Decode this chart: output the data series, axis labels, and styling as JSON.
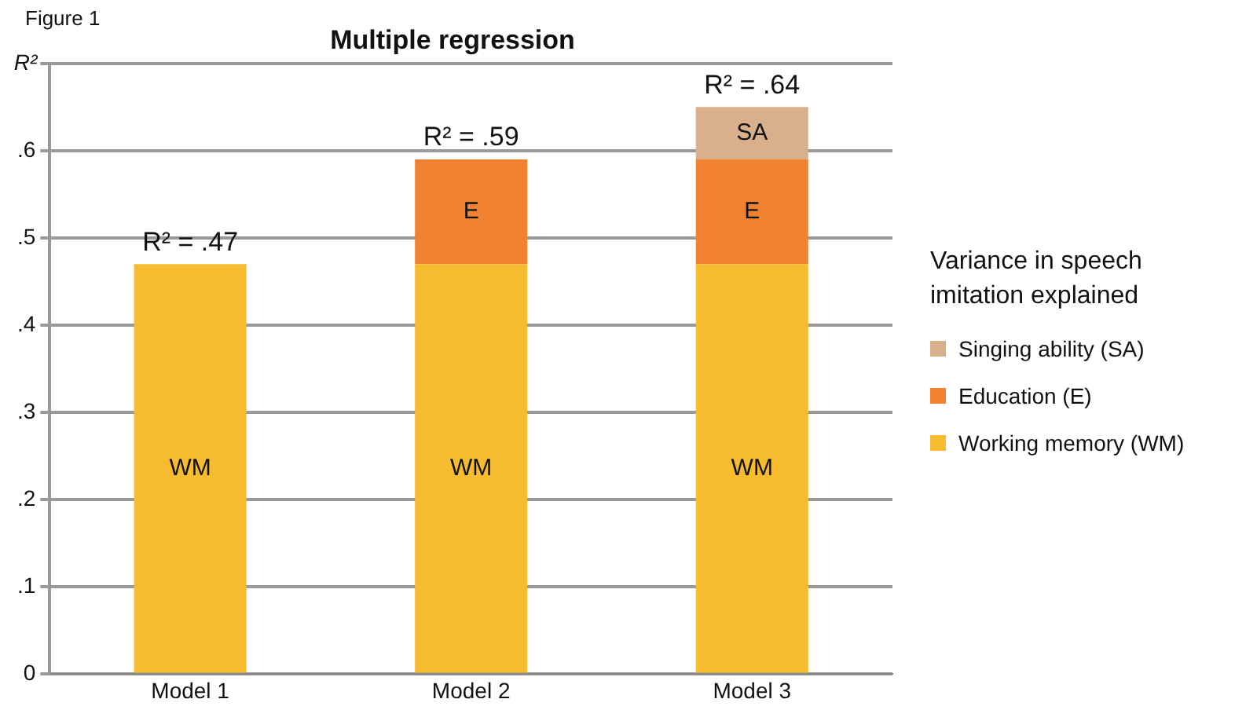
{
  "chart_data": {
    "type": "bar",
    "title": "Multiple regression",
    "ylabel": "R²",
    "annotations": [
      "Figure 1"
    ],
    "categories": [
      "Model 1",
      "Model 2",
      "Model 3"
    ],
    "stacked": true,
    "series": [
      {
        "name": "Working memory (WM)",
        "color": "#f6bb2e",
        "values": [
          0.47,
          0.47,
          0.47
        ],
        "value_labels": [
          "WM",
          "WM",
          "WM"
        ]
      },
      {
        "name": "Education (E)",
        "color": "#f08231",
        "values": [
          0,
          0.12,
          0.12
        ],
        "value_labels": [
          null,
          "E",
          "E"
        ]
      },
      {
        "name": "Singing ability (SA)",
        "color": "#d9b08c",
        "values": [
          0,
          0,
          0.06
        ],
        "value_labels": [
          null,
          null,
          "SA"
        ]
      }
    ],
    "totals": [
      "R² = .47",
      "R² = .59",
      "R² = .64"
    ],
    "ylim": [
      0,
      0.7
    ],
    "yticks": [
      0,
      {
        "value": 0.1,
        "label": ".1"
      },
      {
        "value": 0.2,
        "label": ".2"
      },
      {
        "value": 0.3,
        "label": ".3"
      },
      {
        "value": 0.4,
        "label": ".4"
      },
      {
        "value": 0.5,
        "label": ".5"
      },
      {
        "value": 0.6,
        "label": ".6"
      },
      {
        "value": 0.7,
        "label": null
      }
    ],
    "grid": "y",
    "legend": "right",
    "legend_title": "Variance in speech imitation explained"
  }
}
